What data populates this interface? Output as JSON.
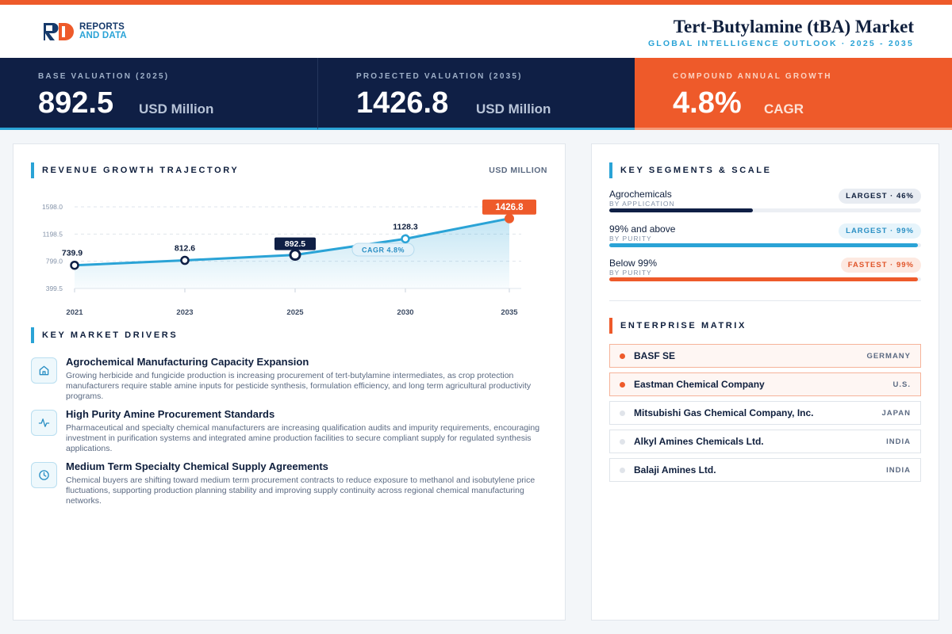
{
  "brand": {
    "logo_mark": "RD",
    "logo_line1": "REPORTS",
    "logo_line2": "AND DATA"
  },
  "header": {
    "title": "Tert-Butylamine (tBA) Market",
    "subtitle": "GLOBAL INTELLIGENCE OUTLOOK · 2025 - 2035"
  },
  "kpis": [
    {
      "label": "BASE VALUATION (2025)",
      "value": "892.5",
      "unit": "USD Million"
    },
    {
      "label": "PROJECTED VALUATION (2035)",
      "value": "1426.8",
      "unit": "USD Million"
    },
    {
      "label": "COMPOUND ANNUAL GROWTH",
      "value": "4.8%",
      "unit": "CAGR"
    }
  ],
  "revenue": {
    "section_title": "REVENUE GROWTH TRAJECTORY",
    "unit_label": "USD MILLION",
    "cagr_tag": "CAGR 4.8%"
  },
  "chart_data": {
    "type": "area",
    "x": [
      "2021",
      "2023",
      "2025",
      "2030",
      "2035"
    ],
    "values": [
      739.9,
      812.6,
      892.5,
      1128.3,
      1426.8
    ],
    "value_labels": [
      "739.9",
      "812.6",
      "892.5",
      "1128.3",
      "1426.8"
    ],
    "y_ticks": [
      "1598.0",
      "1198.5",
      "799.0",
      "399.5"
    ],
    "y_tick_values": [
      1598.0,
      1198.5,
      799.0,
      399.5
    ],
    "ylim": [
      399.5,
      1598.0
    ],
    "grid": true,
    "colors": {
      "line": "#2aa3d6",
      "highlight": "#0f1f45",
      "end": "#ee5a2a"
    }
  },
  "drivers": {
    "section_title": "KEY MARKET DRIVERS",
    "items": [
      {
        "icon": "home-icon",
        "title": "Agrochemical Manufacturing Capacity Expansion",
        "desc": "Growing herbicide and fungicide production is increasing procurement of tert-butylamine intermediates, as crop protection manufacturers require stable amine inputs for pesticide synthesis, formulation efficiency, and long term agricultural productivity programs."
      },
      {
        "icon": "activity-icon",
        "title": "High Purity Amine Procurement Standards",
        "desc": "Pharmaceutical and specialty chemical manufacturers are increasing qualification audits and impurity requirements, encouraging investment in purification systems and integrated amine production facilities to secure compliant supply for regulated synthesis applications."
      },
      {
        "icon": "clock-icon",
        "title": "Medium Term Specialty Chemical Supply Agreements",
        "desc": "Chemical buyers are shifting toward medium term procurement contracts to reduce exposure to methanol and isobutylene price fluctuations, supporting production planning stability and improving supply continuity across regional chemical manufacturing networks."
      }
    ]
  },
  "segments": {
    "section_title": "KEY SEGMENTS & SCALE",
    "items": [
      {
        "name": "Agrochemicals",
        "sub": "BY APPLICATION",
        "badge": "LARGEST · 46%",
        "fill": 0.46,
        "color": "#0f1f45"
      },
      {
        "name": "99% and above",
        "sub": "BY PURITY",
        "badge": "LARGEST · 99%",
        "fill": 0.99,
        "color": "#2aa3d6"
      },
      {
        "name": "Below 99%",
        "sub": "BY PURITY",
        "badge": "FASTEST · 99%",
        "fill": 0.99,
        "color": "#ee5a2a"
      }
    ]
  },
  "enterprise": {
    "section_title": "ENTERPRISE MATRIX",
    "items": [
      {
        "name": "BASF SE",
        "country": "GERMANY",
        "highlight": true
      },
      {
        "name": "Eastman Chemical Company",
        "country": "U.S.",
        "highlight": true
      },
      {
        "name": "Mitsubishi Gas Chemical Company, Inc.",
        "country": "JAPAN",
        "highlight": false
      },
      {
        "name": "Alkyl Amines Chemicals Ltd.",
        "country": "INDIA",
        "highlight": false
      },
      {
        "name": "Balaji Amines Ltd.",
        "country": "INDIA",
        "highlight": false
      }
    ]
  }
}
